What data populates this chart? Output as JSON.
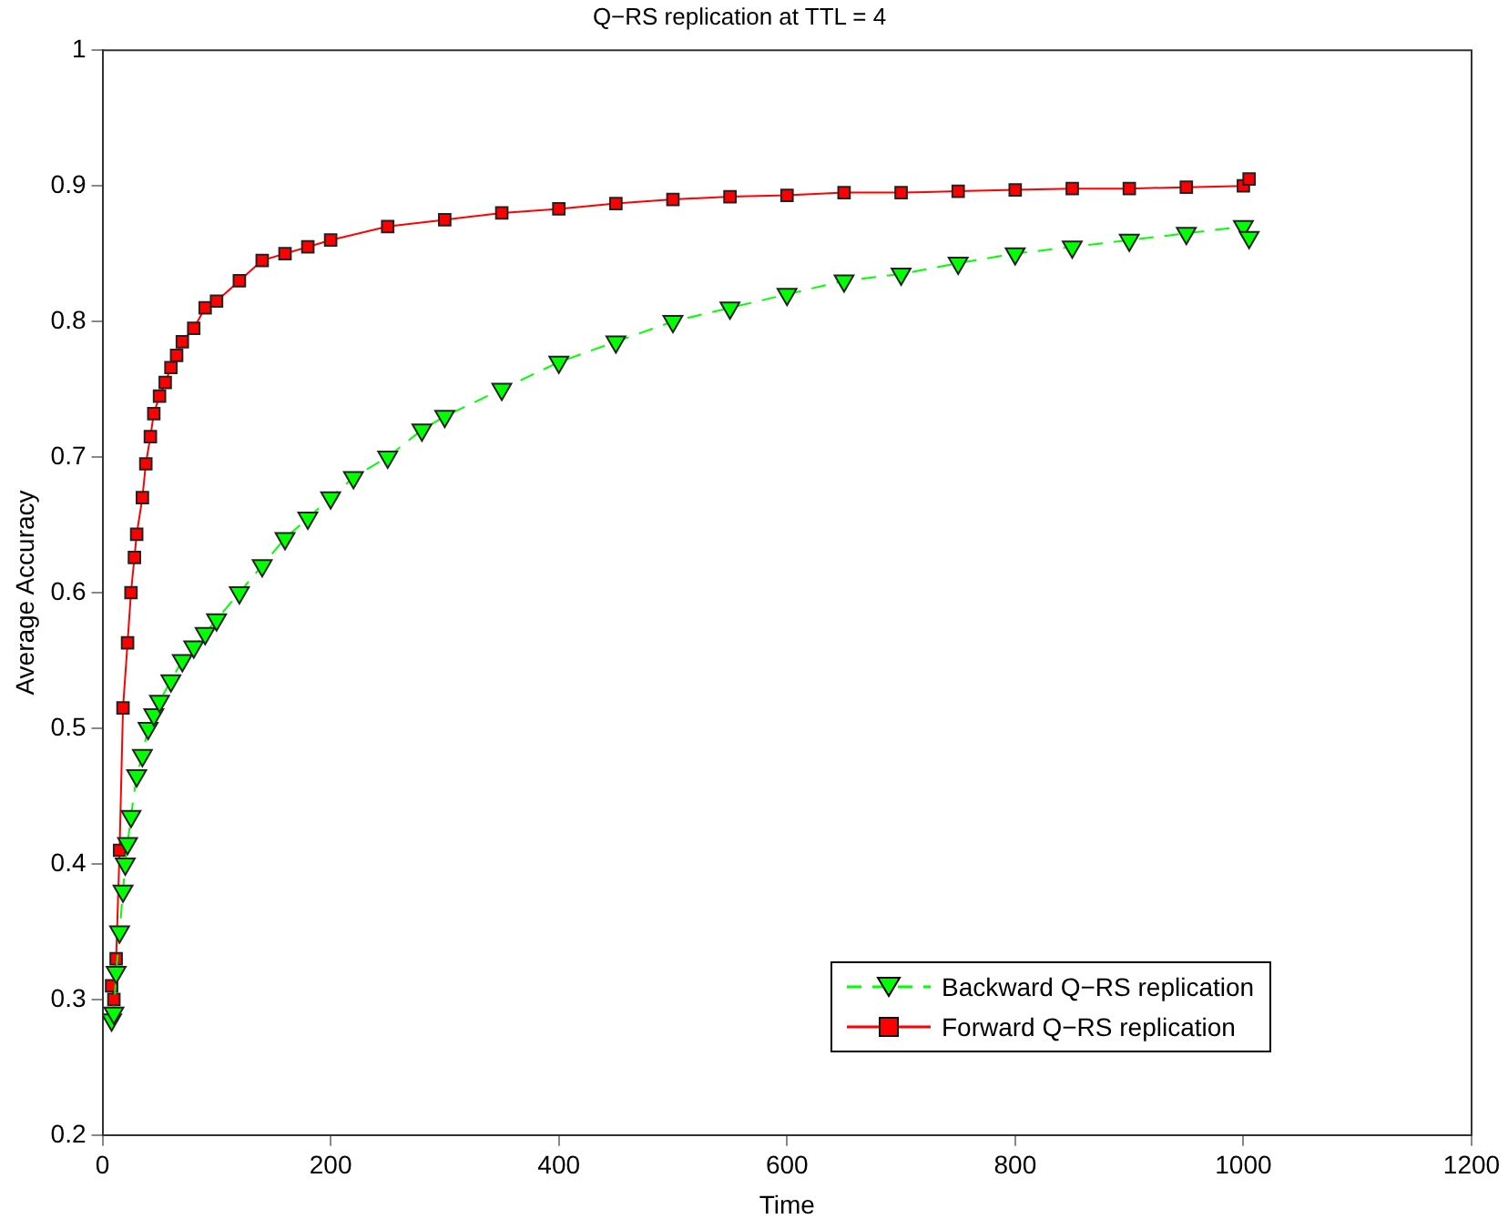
{
  "chart_data": {
    "type": "line",
    "title": "Q−RS replication at TTL = 4",
    "xlabel": "Time",
    "ylabel": "Average Accuracy",
    "xlim": [
      0,
      1200
    ],
    "xticks": [
      0,
      200,
      400,
      600,
      800,
      1000,
      1200
    ],
    "ylim": [
      0.2,
      1
    ],
    "yticks": [
      0.2,
      0.3,
      0.4,
      0.5,
      0.6,
      0.7,
      0.8,
      0.9,
      1
    ],
    "grid": false,
    "legend": "bottom right",
    "series": [
      {
        "name": "Backward Q−RS replication",
        "color": "#00ff00",
        "marker": "triangle",
        "line_style": "dashed",
        "x": [
          8,
          10,
          12,
          15,
          18,
          20,
          22,
          25,
          30,
          35,
          40,
          45,
          50,
          60,
          70,
          80,
          90,
          100,
          120,
          140,
          160,
          180,
          200,
          220,
          250,
          280,
          300,
          350,
          400,
          450,
          500,
          550,
          600,
          650,
          700,
          750,
          800,
          850,
          900,
          950,
          1000,
          1005
        ],
        "values": [
          0.285,
          0.29,
          0.32,
          0.35,
          0.38,
          0.4,
          0.415,
          0.435,
          0.465,
          0.48,
          0.5,
          0.51,
          0.52,
          0.535,
          0.55,
          0.56,
          0.57,
          0.58,
          0.6,
          0.62,
          0.64,
          0.655,
          0.67,
          0.685,
          0.7,
          0.72,
          0.73,
          0.75,
          0.77,
          0.785,
          0.8,
          0.81,
          0.82,
          0.83,
          0.835,
          0.843,
          0.85,
          0.855,
          0.86,
          0.865,
          0.87,
          0.862
        ]
      },
      {
        "name": "Forward Q−RS replication",
        "color": "#ff0000",
        "marker": "square",
        "line_style": "solid",
        "x": [
          8,
          10,
          12,
          15,
          18,
          22,
          25,
          28,
          30,
          35,
          38,
          42,
          45,
          50,
          55,
          60,
          65,
          70,
          80,
          90,
          100,
          120,
          140,
          160,
          180,
          200,
          250,
          300,
          350,
          400,
          450,
          500,
          550,
          600,
          650,
          700,
          750,
          800,
          850,
          900,
          950,
          1000,
          1005
        ],
        "values": [
          0.31,
          0.3,
          0.33,
          0.41,
          0.515,
          0.563,
          0.6,
          0.626,
          0.643,
          0.67,
          0.695,
          0.715,
          0.732,
          0.745,
          0.755,
          0.766,
          0.775,
          0.785,
          0.795,
          0.81,
          0.815,
          0.83,
          0.845,
          0.85,
          0.855,
          0.86,
          0.87,
          0.875,
          0.88,
          0.883,
          0.887,
          0.89,
          0.892,
          0.893,
          0.895,
          0.895,
          0.896,
          0.897,
          0.898,
          0.898,
          0.899,
          0.9,
          0.905
        ]
      }
    ]
  }
}
